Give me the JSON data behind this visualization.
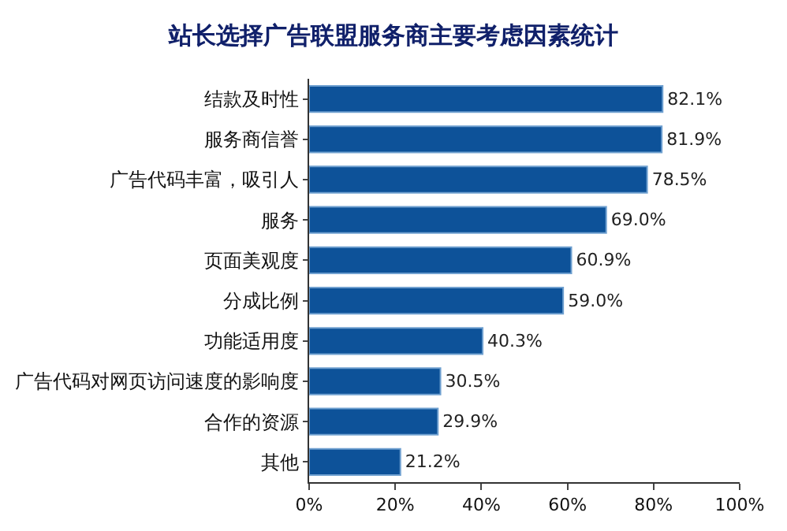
{
  "chart_data": {
    "type": "bar",
    "orientation": "horizontal",
    "title": "站长选择广告联盟服务商主要考虑因素统计",
    "categories": [
      "结款及时性",
      "服务商信誉",
      "广告代码丰富，吸引人",
      "服务",
      "页面美观度",
      "分成比例",
      "功能适用度",
      "广告代码对网页访问速度的影响度",
      "合作的资源",
      "其他"
    ],
    "values": [
      82.1,
      81.9,
      78.5,
      69.0,
      60.9,
      59.0,
      40.3,
      30.5,
      29.9,
      21.2
    ],
    "value_labels": [
      "82.1%",
      "81.9%",
      "78.5%",
      "69.0%",
      "60.9%",
      "59.0%",
      "40.3%",
      "30.5%",
      "29.9%",
      "21.2%"
    ],
    "color": "#0d5299",
    "xlim": [
      0,
      100
    ],
    "xticks": [
      {
        "value": 0,
        "label": "0%"
      },
      {
        "value": 20,
        "label": "20%"
      },
      {
        "value": 40,
        "label": "40%"
      },
      {
        "value": 60,
        "label": "60%"
      },
      {
        "value": 80,
        "label": "80%"
      },
      {
        "value": 100,
        "label": "100%"
      }
    ],
    "legend": false
  }
}
